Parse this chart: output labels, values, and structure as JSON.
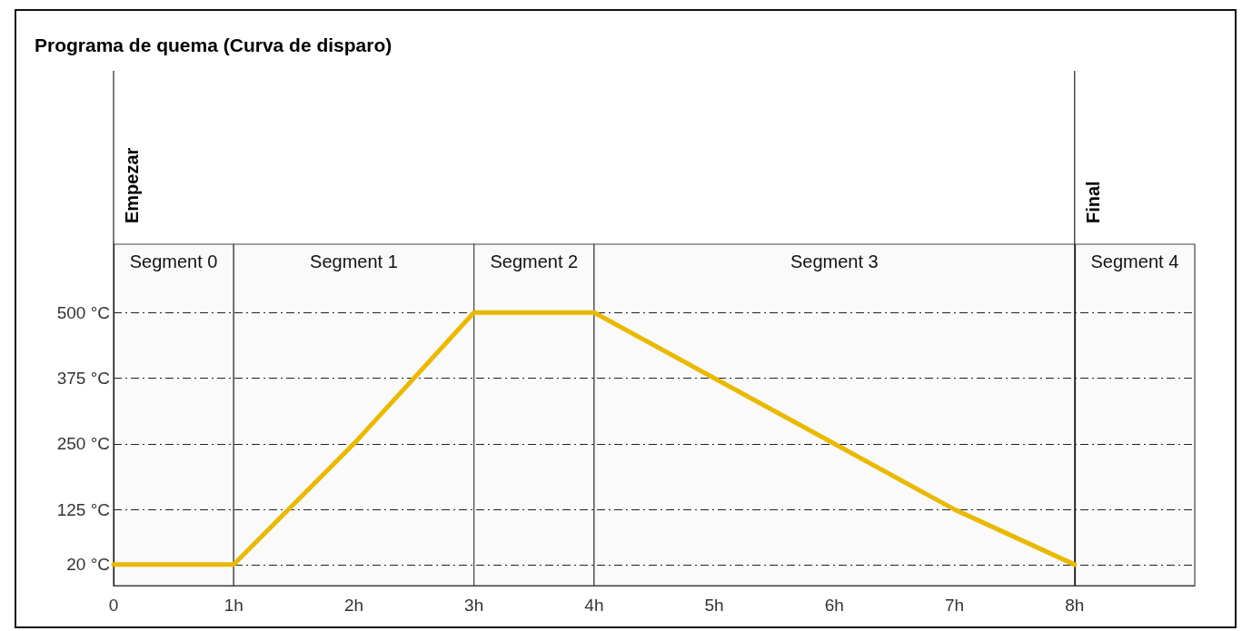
{
  "chart_data": {
    "type": "line",
    "title": "Programa de quema (Curva de disparo)",
    "x": [
      0,
      1,
      2,
      3,
      4,
      5,
      6,
      7,
      8
    ],
    "series": [
      {
        "color": "#e8b900",
        "values": [
          20,
          20,
          250,
          500,
          500,
          375,
          250,
          125,
          20
        ]
      }
    ],
    "xlim": [
      0,
      9
    ],
    "xticks": [
      0,
      {
        "value": 1,
        "label": "1h"
      },
      {
        "value": 2,
        "label": "2h"
      },
      {
        "value": 3,
        "label": "3h"
      },
      {
        "value": 4,
        "label": "4h"
      },
      {
        "value": 5,
        "label": "5h"
      },
      {
        "value": 6,
        "label": "6h"
      },
      {
        "value": 7,
        "label": "7h"
      },
      {
        "value": 8,
        "label": "8h"
      }
    ],
    "ylim": [
      -20,
      630
    ],
    "yticks": [
      {
        "value": 20,
        "label": "20 °C"
      },
      {
        "value": 125,
        "label": "125 °C"
      },
      {
        "value": 250,
        "label": "250 °C"
      },
      {
        "value": 375,
        "label": "375 °C"
      },
      {
        "value": 500,
        "label": "500 °C"
      }
    ],
    "bands": [
      {
        "axis": "x",
        "from": 0,
        "to": 1,
        "label": "Segment 0",
        "color": "#fafafa"
      },
      {
        "axis": "x",
        "from": 1,
        "to": 3,
        "label": "Segment 1",
        "color": "#fafafa"
      },
      {
        "axis": "x",
        "from": 3,
        "to": 4,
        "label": "Segment 2",
        "color": "#fafafa"
      },
      {
        "axis": "x",
        "from": 4,
        "to": 8,
        "label": "Segment 3",
        "color": "#fafafa"
      },
      {
        "axis": "x",
        "from": 8,
        "to": 9,
        "label": "Segment 4",
        "color": "#fafafa"
      }
    ],
    "ref_lines": [
      {
        "axis": "x",
        "value": 0,
        "label": "Empezar"
      },
      {
        "axis": "x",
        "value": 8,
        "label": "Final"
      }
    ],
    "grid": "y",
    "marker": "none",
    "line_style": "solid"
  }
}
